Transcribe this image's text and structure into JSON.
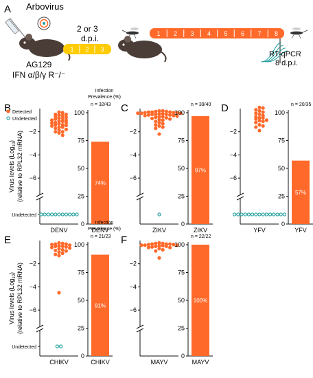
{
  "colors": {
    "accent": "#ff6a2b",
    "undetected": "#1f9e9e",
    "mouse": "#4a3c36",
    "axis": "#111111"
  },
  "schematic": {
    "panel_label": "A",
    "virus_label": "Arbovirus",
    "mouse_strain": "AG129",
    "mouse_genotype": "IFN α/β/γ R⁻/⁻",
    "dpi_label_1": "2 or 3",
    "dpi_label_2": "d.p.i.",
    "day_steps_short": [
      "1",
      "2",
      "3"
    ],
    "day_steps_long": [
      "1",
      "2",
      "3",
      "4",
      "5",
      "6",
      "7",
      "8"
    ],
    "assay": "RT-qPCR",
    "assay_time": "8 d.p.i."
  },
  "labels": {
    "legend_detected": "Detected",
    "legend_undetected": "Undetected",
    "prevalence_title_1": "Infection",
    "prevalence_title_2": "Prevalence (%)",
    "ylabel_line1_prefix": "Virus levels (Log",
    "ylabel_line1_sub": "10",
    "ylabel_line1_suffix": ")",
    "ylabel_line2": "(relative to RPL32 mRNA)",
    "undetected_tick": "Undetected"
  },
  "chart_data": [
    {
      "panel": "B",
      "type": "scatter",
      "virus": "DENV",
      "n_label": "n = 32/43",
      "ylim": [
        -7,
        0
      ],
      "yticks": [
        -2,
        -4,
        -6
      ],
      "prevalence_ylim": [
        0,
        100
      ],
      "prevalence_yticks": [
        0,
        25,
        50,
        75,
        100
      ],
      "prevalence_pct": 74,
      "prevalence_label": "74%",
      "detected": [
        -0.3,
        -0.35,
        -0.5,
        -0.5,
        -0.55,
        -0.6,
        -0.7,
        -0.75,
        -0.8,
        -0.85,
        -0.9,
        -1.0,
        -1.0,
        -1.05,
        -1.1,
        -1.2,
        -1.2,
        -1.25,
        -1.3,
        -1.4,
        -1.4,
        -1.45,
        -1.5,
        -1.6,
        -1.6,
        -1.7,
        -1.8,
        -1.85,
        -2.0,
        -2.0,
        -2.1,
        -2.3
      ],
      "undetected_count": 11
    },
    {
      "panel": "C",
      "type": "scatter",
      "virus": "ZIKV",
      "n_label": "n = 39/40",
      "ylim": [
        -7,
        0
      ],
      "yticks": [
        -2,
        -4,
        -6
      ],
      "prevalence_ylim": [
        0,
        100
      ],
      "prevalence_yticks": [
        0,
        25,
        50,
        75,
        100
      ],
      "prevalence_pct": 97,
      "prevalence_label": "97%",
      "detected": [
        -0.2,
        -0.2,
        -0.25,
        -0.25,
        -0.3,
        -0.3,
        -0.3,
        -0.35,
        -0.35,
        -0.35,
        -0.4,
        -0.4,
        -0.4,
        -0.45,
        -0.45,
        -0.5,
        -0.5,
        -0.5,
        -0.55,
        -0.55,
        -0.6,
        -0.6,
        -0.65,
        -0.7,
        -0.7,
        -0.75,
        -0.8,
        -0.85,
        -0.9,
        -0.95,
        -1.0,
        -1.1,
        -1.2,
        -1.3,
        -1.4,
        -1.5,
        -1.6,
        -1.7,
        -2.2
      ],
      "undetected_count": 1
    },
    {
      "panel": "D",
      "type": "scatter",
      "virus": "YFV",
      "n_label": "n = 20/35",
      "ylim": [
        -7,
        0
      ],
      "yticks": [
        -2,
        -4,
        -6
      ],
      "prevalence_ylim": [
        0,
        100
      ],
      "prevalence_yticks": [
        0,
        25,
        50,
        75,
        100
      ],
      "prevalence_pct": 57,
      "prevalence_label": "57%",
      "detected": [
        0.1,
        0.05,
        -0.1,
        -0.2,
        -0.3,
        -0.4,
        -0.5,
        -0.6,
        -0.7,
        -0.8,
        -0.8,
        -0.9,
        -1.0,
        -1.05,
        -1.1,
        -1.2,
        -1.4,
        -1.5,
        -1.6,
        -1.9
      ],
      "undetected_count": 15
    },
    {
      "panel": "E",
      "type": "scatter",
      "virus": "CHIKV",
      "n_label": "n = 21/23",
      "ylim": [
        -7,
        0
      ],
      "yticks": [
        -2,
        -4,
        -6
      ],
      "prevalence_ylim": [
        0,
        100
      ],
      "prevalence_yticks": [
        0,
        25,
        50,
        75,
        100
      ],
      "prevalence_pct": 91,
      "prevalence_label": "91%",
      "detected": [
        -0.2,
        -0.25,
        -0.3,
        -0.3,
        -0.35,
        -0.4,
        -0.45,
        -0.5,
        -0.5,
        -0.55,
        -0.6,
        -0.65,
        -0.7,
        -0.8,
        -0.85,
        -0.9,
        -1.0,
        -1.1,
        -1.2,
        -1.3,
        -4.5
      ],
      "undetected_count": 2
    },
    {
      "panel": "F",
      "type": "scatter",
      "virus": "MAYV",
      "n_label": "n = 22/22",
      "ylim": [
        -7,
        0
      ],
      "yticks": [
        -2,
        -4,
        -6
      ],
      "prevalence_ylim": [
        0,
        100
      ],
      "prevalence_yticks": [
        0,
        25,
        50,
        75,
        100
      ],
      "prevalence_pct": 100,
      "prevalence_label": "100%",
      "detected": [
        -0.2,
        -0.25,
        -0.25,
        -0.3,
        -0.3,
        -0.3,
        -0.35,
        -0.35,
        -0.4,
        -0.4,
        -0.4,
        -0.45,
        -0.45,
        -0.5,
        -0.5,
        -0.55,
        -0.6,
        -0.6,
        -0.7,
        -0.8,
        -0.9,
        -1.5
      ],
      "undetected_count": 0
    }
  ]
}
